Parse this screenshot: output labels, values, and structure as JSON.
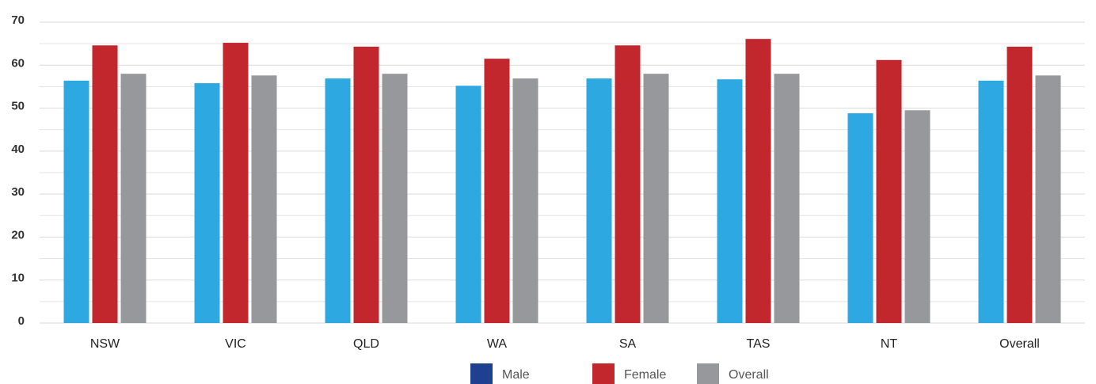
{
  "chart_data": {
    "type": "bar",
    "categories": [
      "NSW",
      "VIC",
      "QLD",
      "WA",
      "SA",
      "TAS",
      "NT",
      "Overall"
    ],
    "series": [
      {
        "name": "Male",
        "color": "#2ea8e0",
        "legend_color": "#1f3f8f",
        "values": [
          56.4,
          55.8,
          56.9,
          55.2,
          56.9,
          56.7,
          48.8,
          56.4
        ]
      },
      {
        "name": "Female",
        "color": "#c1272d",
        "legend_color": "#c1272d",
        "values": [
          64.6,
          65.2,
          64.3,
          61.5,
          64.6,
          66.1,
          61.2,
          64.3
        ]
      },
      {
        "name": "Overall",
        "color": "#97989c",
        "legend_color": "#97989c",
        "values": [
          58.0,
          57.6,
          58.0,
          56.9,
          58.0,
          58.0,
          49.5,
          57.6
        ]
      }
    ],
    "ylim": [
      0,
      70
    ],
    "yticks": [
      0,
      10,
      20,
      30,
      40,
      50,
      60,
      70
    ],
    "minor_yticks": [
      5,
      15,
      25,
      35,
      45,
      55,
      65
    ],
    "grid": true,
    "legend": "bottom"
  }
}
